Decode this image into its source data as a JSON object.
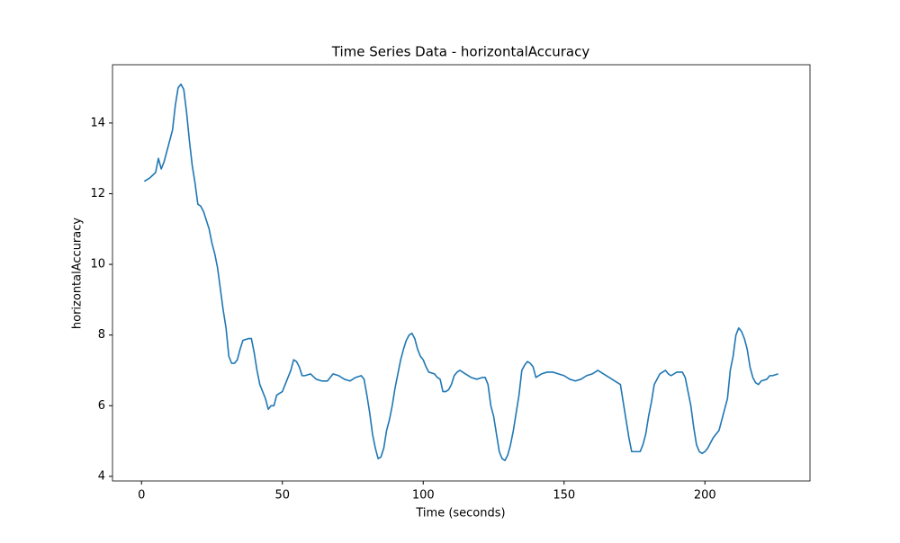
{
  "chart_data": {
    "type": "line",
    "title": "Time Series Data - horizontalAccuracy",
    "x_label": "Time (seconds)",
    "y_label": "horizontalAccuracy",
    "color": "#1f77b4",
    "x": [
      1,
      3,
      5,
      6,
      7,
      8,
      10,
      11,
      12,
      13,
      14,
      15,
      16,
      17,
      18,
      19,
      20,
      21,
      22,
      24,
      25,
      26,
      27,
      28,
      29,
      30,
      31,
      32,
      33,
      34,
      35,
      36,
      38,
      39,
      40,
      41,
      42,
      43,
      44,
      45,
      46,
      47,
      48,
      50,
      51,
      53,
      54,
      55,
      56,
      57,
      58,
      60,
      62,
      64,
      66,
      68,
      70,
      72,
      74,
      76,
      78,
      79,
      80,
      81,
      82,
      83,
      84,
      85,
      86,
      87,
      88,
      89,
      90,
      91,
      92,
      93,
      94,
      95,
      96,
      97,
      98,
      99,
      100,
      101,
      102,
      104,
      105,
      106,
      107,
      108,
      109,
      110,
      111,
      112,
      113,
      115,
      117,
      119,
      121,
      122,
      123,
      124,
      125,
      126,
      127,
      128,
      129,
      130,
      131,
      132,
      133,
      134,
      135,
      136,
      137,
      138,
      139,
      140,
      142,
      144,
      146,
      148,
      150,
      152,
      154,
      156,
      158,
      160,
      162,
      164,
      166,
      168,
      170,
      171,
      172,
      173,
      174,
      176,
      177,
      178,
      179,
      180,
      181,
      182,
      184,
      186,
      187,
      188,
      190,
      192,
      193,
      194,
      195,
      196,
      197,
      198,
      199,
      200,
      201,
      202,
      203,
      204,
      205,
      206,
      207,
      208,
      209,
      210,
      211,
      212,
      213,
      214,
      215,
      216,
      217,
      218,
      219,
      220,
      222,
      223,
      224,
      226
    ],
    "values": [
      12.35,
      12.45,
      12.6,
      13.0,
      12.7,
      12.9,
      13.5,
      13.8,
      14.5,
      15.0,
      15.1,
      14.95,
      14.3,
      13.5,
      12.8,
      12.3,
      11.7,
      11.65,
      11.5,
      11.0,
      10.6,
      10.3,
      9.9,
      9.3,
      8.7,
      8.2,
      7.4,
      7.2,
      7.2,
      7.3,
      7.6,
      7.85,
      7.9,
      7.9,
      7.5,
      7.0,
      6.6,
      6.4,
      6.2,
      5.9,
      6.0,
      6.0,
      6.3,
      6.4,
      6.6,
      7.0,
      7.3,
      7.25,
      7.1,
      6.85,
      6.85,
      6.9,
      6.75,
      6.7,
      6.7,
      6.9,
      6.85,
      6.75,
      6.7,
      6.8,
      6.85,
      6.75,
      6.3,
      5.8,
      5.2,
      4.8,
      4.5,
      4.55,
      4.8,
      5.3,
      5.6,
      6.0,
      6.5,
      6.9,
      7.3,
      7.6,
      7.85,
      8.0,
      8.05,
      7.9,
      7.6,
      7.4,
      7.3,
      7.1,
      6.95,
      6.9,
      6.8,
      6.75,
      6.4,
      6.4,
      6.45,
      6.6,
      6.85,
      6.95,
      7.0,
      6.9,
      6.8,
      6.75,
      6.8,
      6.8,
      6.6,
      6.0,
      5.7,
      5.2,
      4.7,
      4.5,
      4.45,
      4.6,
      4.9,
      5.3,
      5.8,
      6.3,
      7.0,
      7.15,
      7.25,
      7.2,
      7.1,
      6.8,
      6.9,
      6.95,
      6.95,
      6.9,
      6.85,
      6.75,
      6.7,
      6.75,
      6.85,
      6.9,
      7.0,
      6.9,
      6.8,
      6.7,
      6.6,
      6.1,
      5.6,
      5.1,
      4.7,
      4.7,
      4.7,
      4.9,
      5.2,
      5.7,
      6.1,
      6.6,
      6.9,
      7.0,
      6.9,
      6.85,
      6.95,
      6.95,
      6.8,
      6.4,
      6.0,
      5.4,
      4.9,
      4.7,
      4.65,
      4.7,
      4.8,
      4.95,
      5.1,
      5.2,
      5.3,
      5.6,
      5.9,
      6.2,
      7.0,
      7.4,
      8.0,
      8.2,
      8.1,
      7.9,
      7.6,
      7.1,
      6.8,
      6.65,
      6.6,
      6.7,
      6.75,
      6.85,
      6.85,
      6.9
    ],
    "xlim": [
      -10.3,
      237.3
    ],
    "xticks": [
      0,
      50,
      100,
      150,
      200
    ],
    "ylim": [
      3.87,
      15.65
    ],
    "yticks": [
      4,
      6,
      8,
      10,
      12,
      14
    ],
    "grid": false
  }
}
